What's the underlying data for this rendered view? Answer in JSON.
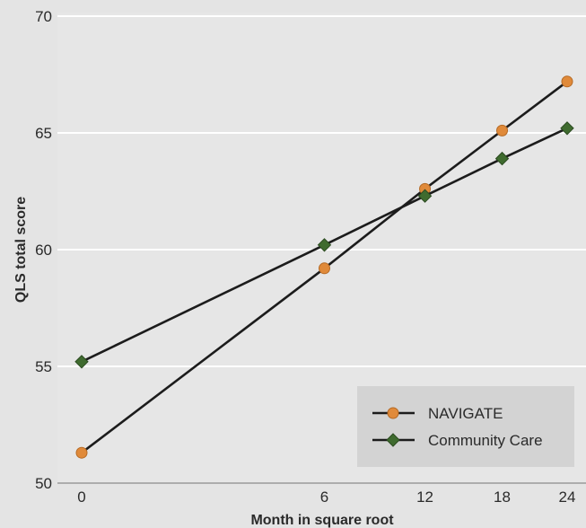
{
  "chart_data": {
    "type": "line",
    "xlabel": "Month in square root",
    "ylabel": "QLS total score",
    "x_scale": "sqrt",
    "x": [
      0,
      6,
      12,
      18,
      24
    ],
    "xticks": [
      "0",
      "6",
      "12",
      "18",
      "24"
    ],
    "ylim": [
      50,
      70
    ],
    "yticks": [
      "50",
      "55",
      "60",
      "65",
      "70"
    ],
    "grid": "horizontal",
    "legend_position": "bottom-right",
    "series": [
      {
        "name": "NAVIGATE",
        "marker": "circle",
        "color": "#1c1c1c",
        "marker_color": "#e08a3a",
        "values": [
          51.3,
          59.2,
          62.6,
          65.1,
          67.2
        ]
      },
      {
        "name": "Community Care",
        "marker": "diamond",
        "color": "#1c1c1c",
        "marker_color": "#3f6b2f",
        "values": [
          55.2,
          60.2,
          62.3,
          63.9,
          65.2
        ]
      }
    ]
  },
  "colors": {
    "background": "#e4e4e4",
    "plot_background": "#e6e6e6",
    "grid": "#ffffff",
    "legend_background": "#d3d3d3",
    "axis_text": "#2a2a2a"
  }
}
